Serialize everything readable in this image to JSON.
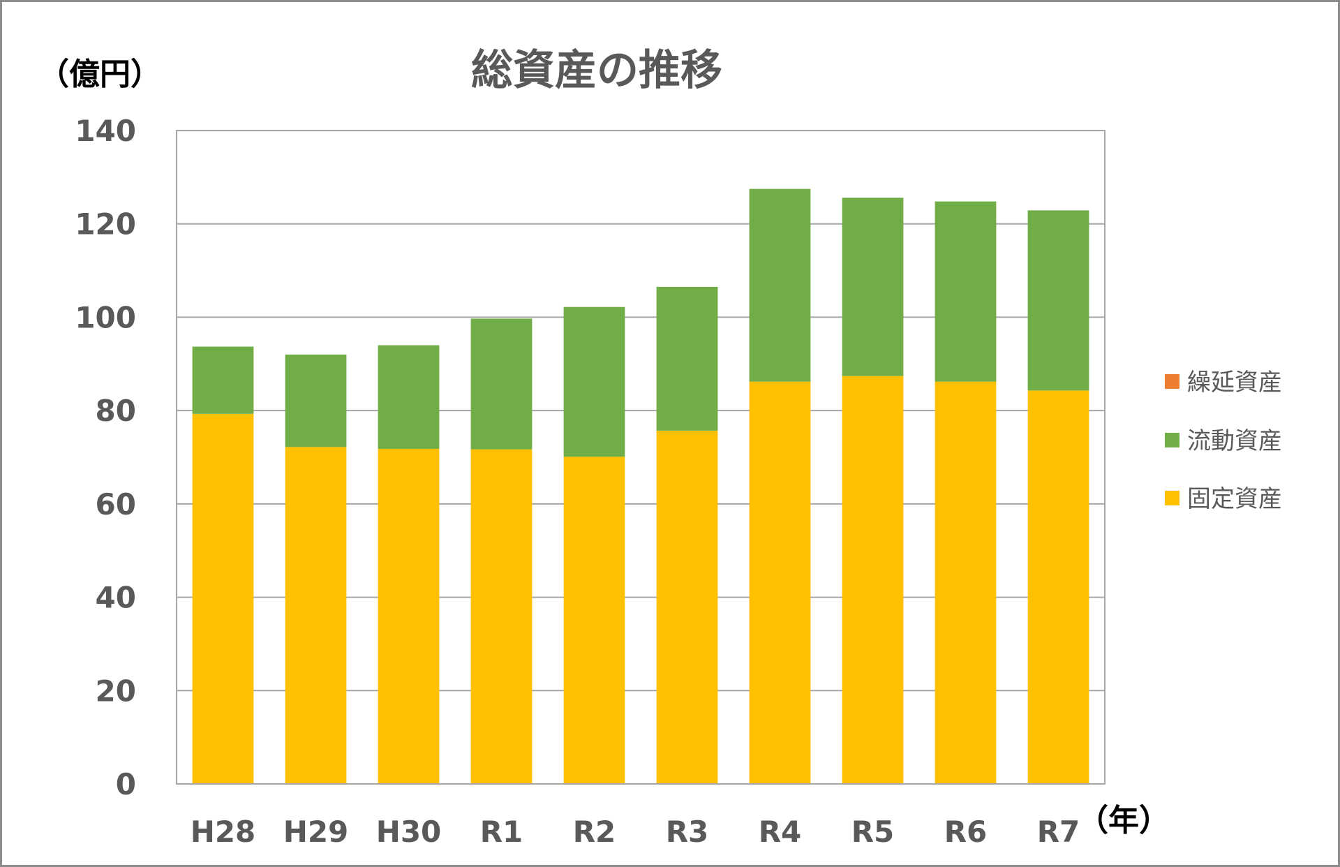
{
  "chart_data": {
    "type": "bar",
    "stacked": true,
    "title": "総資産の推移",
    "ylabel": "（億円）",
    "xlabel": "（年）",
    "categories": [
      "H28",
      "H29",
      "H30",
      "R1",
      "R2",
      "R3",
      "R4",
      "R5",
      "R6",
      "R7"
    ],
    "ylim": [
      0,
      140
    ],
    "yticks": [
      0,
      20,
      40,
      60,
      80,
      100,
      120,
      140
    ],
    "grid": true,
    "legend_position": "right",
    "series": [
      {
        "name": "固定資産",
        "color": "#ffc000",
        "values": [
          79.3,
          72.2,
          71.8,
          71.7,
          70.1,
          75.7,
          86.2,
          87.4,
          86.2,
          84.3
        ]
      },
      {
        "name": "流動資産",
        "color": "#70ad47",
        "values": [
          14.4,
          19.8,
          22.2,
          28.0,
          32.1,
          30.8,
          41.3,
          38.2,
          38.6,
          38.6
        ]
      },
      {
        "name": "繰延資産",
        "color": "#ed7d31",
        "values": [
          0,
          0,
          0,
          0,
          0,
          0,
          0,
          0,
          0,
          0
        ]
      }
    ],
    "legend_order": [
      "繰延資産",
      "流動資産",
      "固定資産"
    ]
  }
}
